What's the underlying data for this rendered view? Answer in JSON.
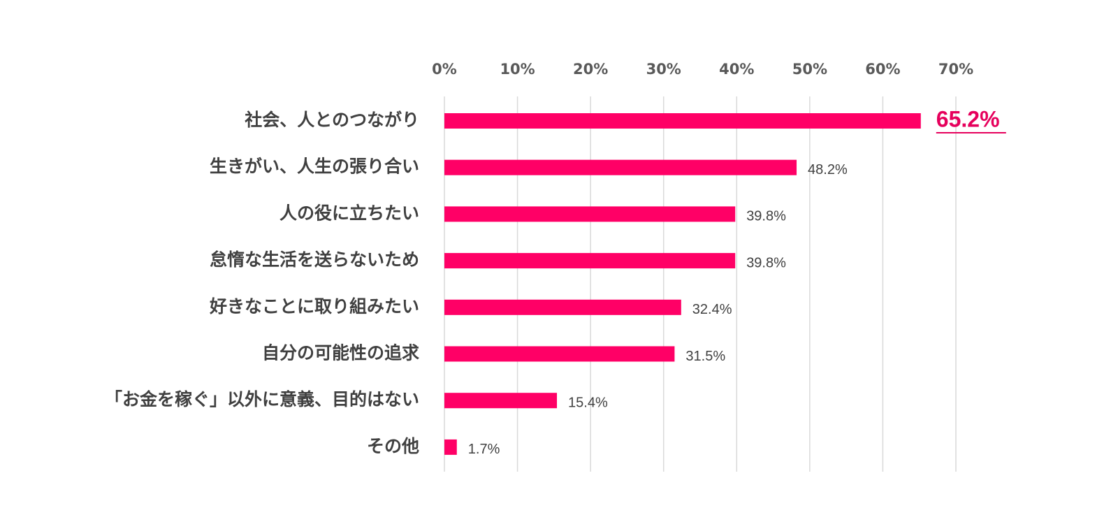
{
  "chart_data": {
    "type": "bar",
    "orientation": "horizontal",
    "categories": [
      "社会、人とのつながり",
      "生きがい、人生の張り合い",
      "人の役に立ちたい",
      "怠惰な生活を送らないため",
      "好きなことに取り組みたい",
      "自分の可能性の追求",
      "「お金を稼ぐ」以外に意義、目的はない",
      "その他"
    ],
    "values": [
      65.2,
      48.2,
      39.8,
      39.8,
      32.4,
      31.5,
      15.4,
      1.7
    ],
    "value_labels": [
      "65.2%",
      "48.2%",
      "39.8%",
      "39.8%",
      "32.4%",
      "31.5%",
      "15.4%",
      "1.7%"
    ],
    "highlight_index": 0,
    "x_ticks": [
      "0%",
      "10%",
      "20%",
      "30%",
      "40%",
      "50%",
      "60%",
      "70%"
    ],
    "xlim": [
      0,
      70
    ],
    "grid": true,
    "axis_position": "top",
    "colors": {
      "bar": "#ff0066",
      "highlight_label": "#e6005c",
      "grid": "#d9d9d9"
    }
  }
}
